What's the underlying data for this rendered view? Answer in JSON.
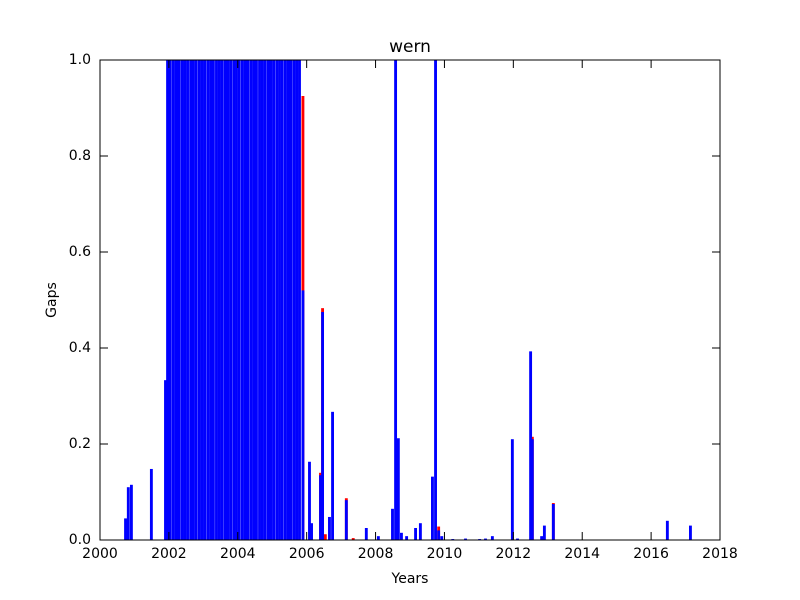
{
  "chart_data": {
    "type": "bar",
    "title": "wern",
    "x_label": "Years",
    "y_label": "Gaps",
    "x": [
      2000.7,
      2000.78,
      2000.87,
      2001.45,
      2001.86,
      2001.92,
      2002.0,
      2002.09,
      2002.17,
      2002.25,
      2002.34,
      2002.42,
      2002.5,
      2002.59,
      2002.67,
      2002.75,
      2002.84,
      2002.92,
      2003.0,
      2003.09,
      2003.17,
      2003.25,
      2003.34,
      2003.42,
      2003.5,
      2003.59,
      2003.67,
      2003.75,
      2003.84,
      2003.92,
      2004.0,
      2004.09,
      2004.17,
      2004.25,
      2004.34,
      2004.42,
      2004.5,
      2004.59,
      2004.67,
      2004.75,
      2004.84,
      2004.92,
      2005.0,
      2005.09,
      2005.17,
      2005.25,
      2005.34,
      2005.42,
      2005.5,
      2005.59,
      2005.67,
      2005.75,
      2005.85,
      2006.04,
      2006.1,
      2006.36,
      2006.42,
      2006.5,
      2006.62,
      2006.71,
      2007.11,
      2007.31,
      2007.69,
      2008.04,
      2008.45,
      2008.54,
      2008.62,
      2008.71,
      2008.86,
      2009.12,
      2009.26,
      2009.61,
      2009.7,
      2009.79,
      2009.88,
      2010.2,
      2010.57,
      2010.98,
      2011.15,
      2011.35,
      2011.93,
      2012.08,
      2012.46,
      2012.51,
      2012.78,
      2012.86,
      2013.12,
      2016.43,
      2017.1
    ],
    "series": [
      {
        "color": "#ff0000",
        "values": [
          null,
          null,
          null,
          null,
          null,
          null,
          null,
          null,
          null,
          null,
          null,
          null,
          null,
          null,
          null,
          null,
          null,
          null,
          null,
          null,
          null,
          null,
          null,
          null,
          null,
          null,
          null,
          null,
          null,
          null,
          null,
          null,
          null,
          null,
          null,
          null,
          null,
          null,
          null,
          null,
          null,
          null,
          null,
          null,
          null,
          null,
          null,
          null,
          null,
          null,
          null,
          null,
          0.925,
          null,
          null,
          0.14,
          0.483,
          0.012,
          null,
          null,
          0.087,
          0.004,
          null,
          null,
          null,
          null,
          null,
          null,
          null,
          null,
          null,
          null,
          null,
          0.028,
          null,
          null,
          null,
          null,
          null,
          null,
          null,
          null,
          null,
          0.215,
          null,
          null,
          0.077,
          null,
          null
        ]
      },
      {
        "color": "#0000ff",
        "values": [
          0.045,
          0.11,
          0.115,
          0.148,
          0.333,
          1.0,
          1.0,
          1.0,
          1.0,
          1.0,
          1.0,
          1.0,
          1.0,
          1.0,
          1.0,
          1.0,
          1.0,
          1.0,
          1.0,
          1.0,
          1.0,
          1.0,
          1.0,
          1.0,
          1.0,
          1.0,
          1.0,
          1.0,
          1.0,
          1.0,
          1.0,
          1.0,
          1.0,
          1.0,
          1.0,
          1.0,
          1.0,
          1.0,
          1.0,
          1.0,
          1.0,
          1.0,
          1.0,
          1.0,
          1.0,
          1.0,
          1.0,
          1.0,
          1.0,
          1.0,
          1.0,
          1.0,
          0.52,
          0.163,
          0.035,
          0.135,
          0.475,
          null,
          0.048,
          0.267,
          0.083,
          null,
          0.025,
          0.008,
          0.065,
          1.0,
          0.212,
          0.015,
          0.008,
          0.025,
          0.035,
          0.132,
          1.0,
          0.02,
          0.008,
          0.002,
          0.003,
          0.002,
          0.003,
          0.008,
          0.21,
          0.003,
          0.393,
          0.21,
          0.008,
          0.03,
          0.075,
          0.04,
          0.03
        ]
      }
    ],
    "xlim": [
      2000,
      2018
    ],
    "xticks": [
      2000,
      2002,
      2004,
      2006,
      2008,
      2010,
      2012,
      2014,
      2016,
      2018
    ],
    "ylim": [
      0,
      1
    ],
    "yticks": [
      {
        "value": 0,
        "label": "0.0"
      },
      0.2,
      0.4,
      0.6,
      0.8,
      {
        "value": 1,
        "label": "1.0"
      }
    ],
    "grid": false
  }
}
